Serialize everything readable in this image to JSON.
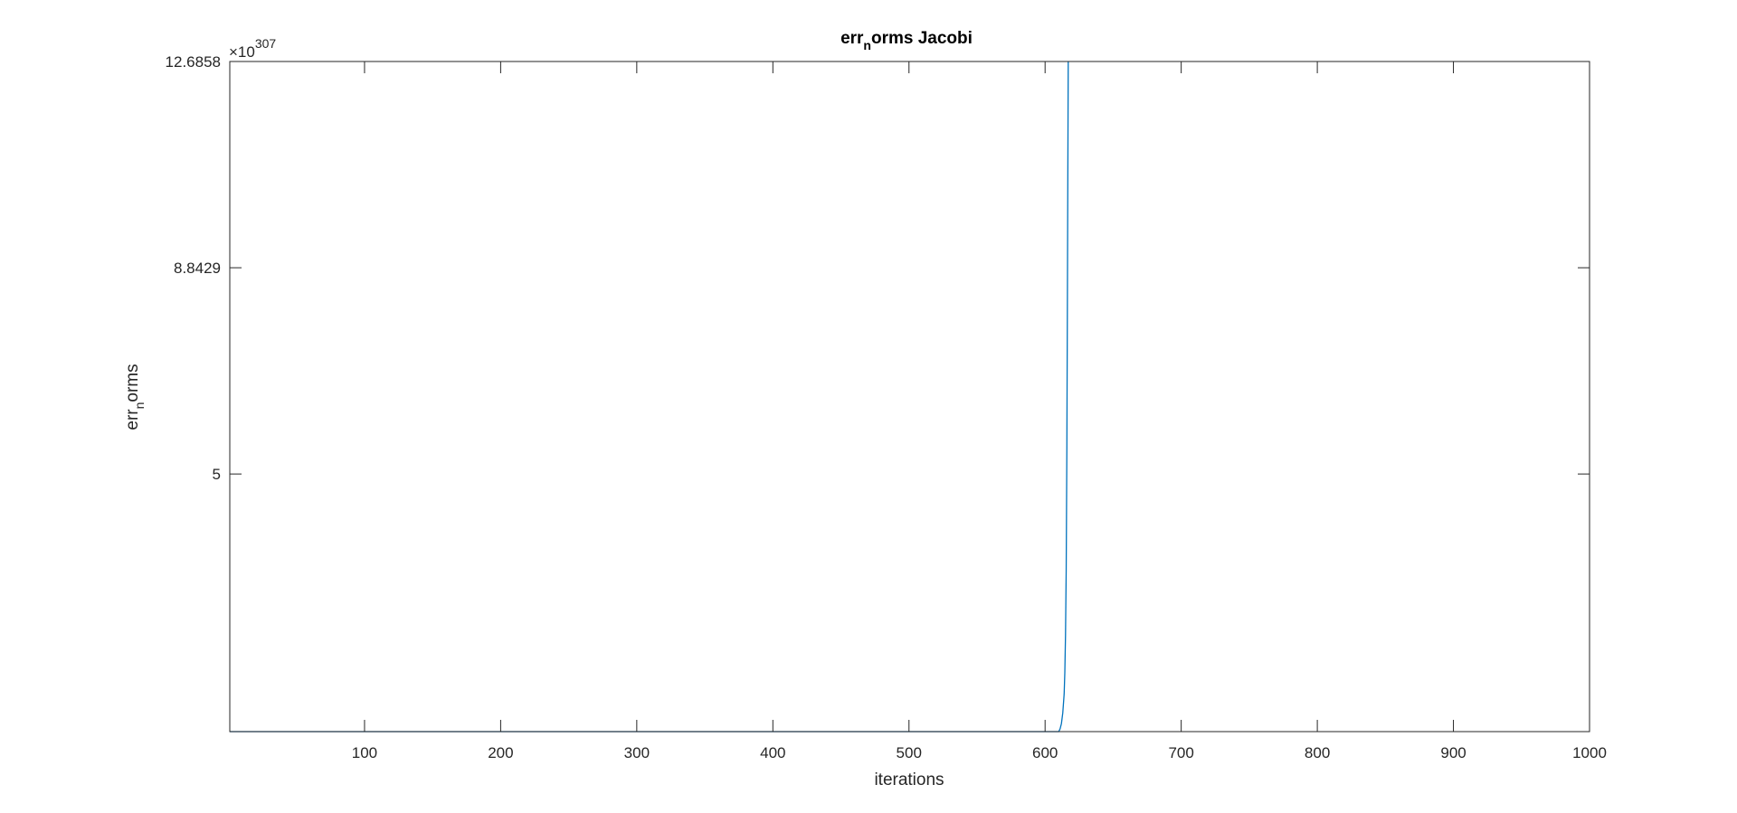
{
  "chart_data": {
    "type": "line",
    "title": {
      "base": "err",
      "subscript": "n",
      "rest": "orms Jacobi"
    },
    "xlabel": "iterations",
    "ylabel": {
      "base": "err",
      "subscript": "n",
      "rest": "orms"
    },
    "y_exponent": {
      "prefix": "×10",
      "power": "307"
    },
    "xlim": [
      1,
      1000
    ],
    "ylim": [
      0.2,
      12.6858
    ],
    "x_ticks": [
      100,
      200,
      300,
      400,
      500,
      600,
      700,
      800,
      900,
      1000
    ],
    "y_ticks": [
      5,
      8.8429,
      12.6858
    ],
    "y_tick_labels": [
      "5",
      "8.8429",
      "12.6858"
    ],
    "grid": false,
    "box": true,
    "series": [
      {
        "color": "#0072BD",
        "x": [
          1,
          500,
          600,
          608,
          610,
          611,
          612,
          613,
          614,
          614.5,
          615,
          615.5,
          616,
          616.5,
          617
        ],
        "y": [
          0.2,
          0.2,
          0.2,
          0.2,
          0.2,
          0.25,
          0.35,
          0.55,
          0.9,
          1.3,
          2.0,
          3.2,
          5.5,
          9.0,
          12.6858
        ]
      }
    ]
  }
}
